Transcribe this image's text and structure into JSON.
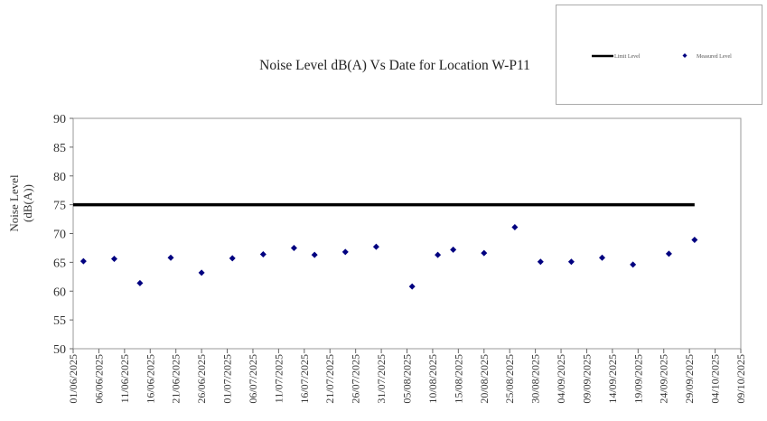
{
  "chart_data": {
    "type": "scatter",
    "title": "Noise Level dB(A) Vs Date for Location W-P11",
    "xlabel": "",
    "ylabel": [
      "Noise Level",
      "(dB(A))"
    ],
    "ylim": [
      50,
      90
    ],
    "yticks": [
      50,
      55,
      60,
      65,
      70,
      75,
      80,
      85,
      90
    ],
    "xlim": [
      "01/06/2025",
      "09/10/2025"
    ],
    "xticks": [
      "01/06/2025",
      "06/06/2025",
      "11/06/2025",
      "16/06/2025",
      "21/06/2025",
      "26/06/2025",
      "01/07/2025",
      "06/07/2025",
      "11/07/2025",
      "16/07/2025",
      "21/07/2025",
      "26/07/2025",
      "31/07/2025",
      "05/08/2025",
      "10/08/2025",
      "15/08/2025",
      "20/08/2025",
      "25/08/2025",
      "30/08/2025",
      "04/09/2025",
      "09/09/2025",
      "14/09/2025",
      "19/09/2025",
      "24/09/2025",
      "29/09/2025",
      "04/10/2025",
      "09/10/2025"
    ],
    "grid": false,
    "legend_position": "top-right",
    "series": [
      {
        "name": "Limit Level",
        "kind": "line",
        "color": "#000000",
        "points": [
          {
            "x": "01/06/2025",
            "y": 75
          },
          {
            "x": "30/09/2025",
            "y": 75
          }
        ]
      },
      {
        "name": "Measured Level",
        "kind": "scatter",
        "color": "#000080",
        "points": [
          {
            "x": "03/06/2025",
            "y": 65.2
          },
          {
            "x": "09/06/2025",
            "y": 65.6
          },
          {
            "x": "14/06/2025",
            "y": 61.4
          },
          {
            "x": "20/06/2025",
            "y": 65.8
          },
          {
            "x": "26/06/2025",
            "y": 63.2
          },
          {
            "x": "02/07/2025",
            "y": 65.7
          },
          {
            "x": "08/07/2025",
            "y": 66.4
          },
          {
            "x": "14/07/2025",
            "y": 67.5
          },
          {
            "x": "18/07/2025",
            "y": 66.3
          },
          {
            "x": "24/07/2025",
            "y": 66.8
          },
          {
            "x": "30/07/2025",
            "y": 67.7
          },
          {
            "x": "06/08/2025",
            "y": 60.8
          },
          {
            "x": "11/08/2025",
            "y": 66.3
          },
          {
            "x": "14/08/2025",
            "y": 67.2
          },
          {
            "x": "20/08/2025",
            "y": 66.6
          },
          {
            "x": "26/08/2025",
            "y": 71.1
          },
          {
            "x": "31/08/2025",
            "y": 65.1
          },
          {
            "x": "06/09/2025",
            "y": 65.1
          },
          {
            "x": "12/09/2025",
            "y": 65.8
          },
          {
            "x": "18/09/2025",
            "y": 64.6
          },
          {
            "x": "25/09/2025",
            "y": 66.5
          },
          {
            "x": "30/09/2025",
            "y": 68.9
          }
        ]
      }
    ]
  }
}
